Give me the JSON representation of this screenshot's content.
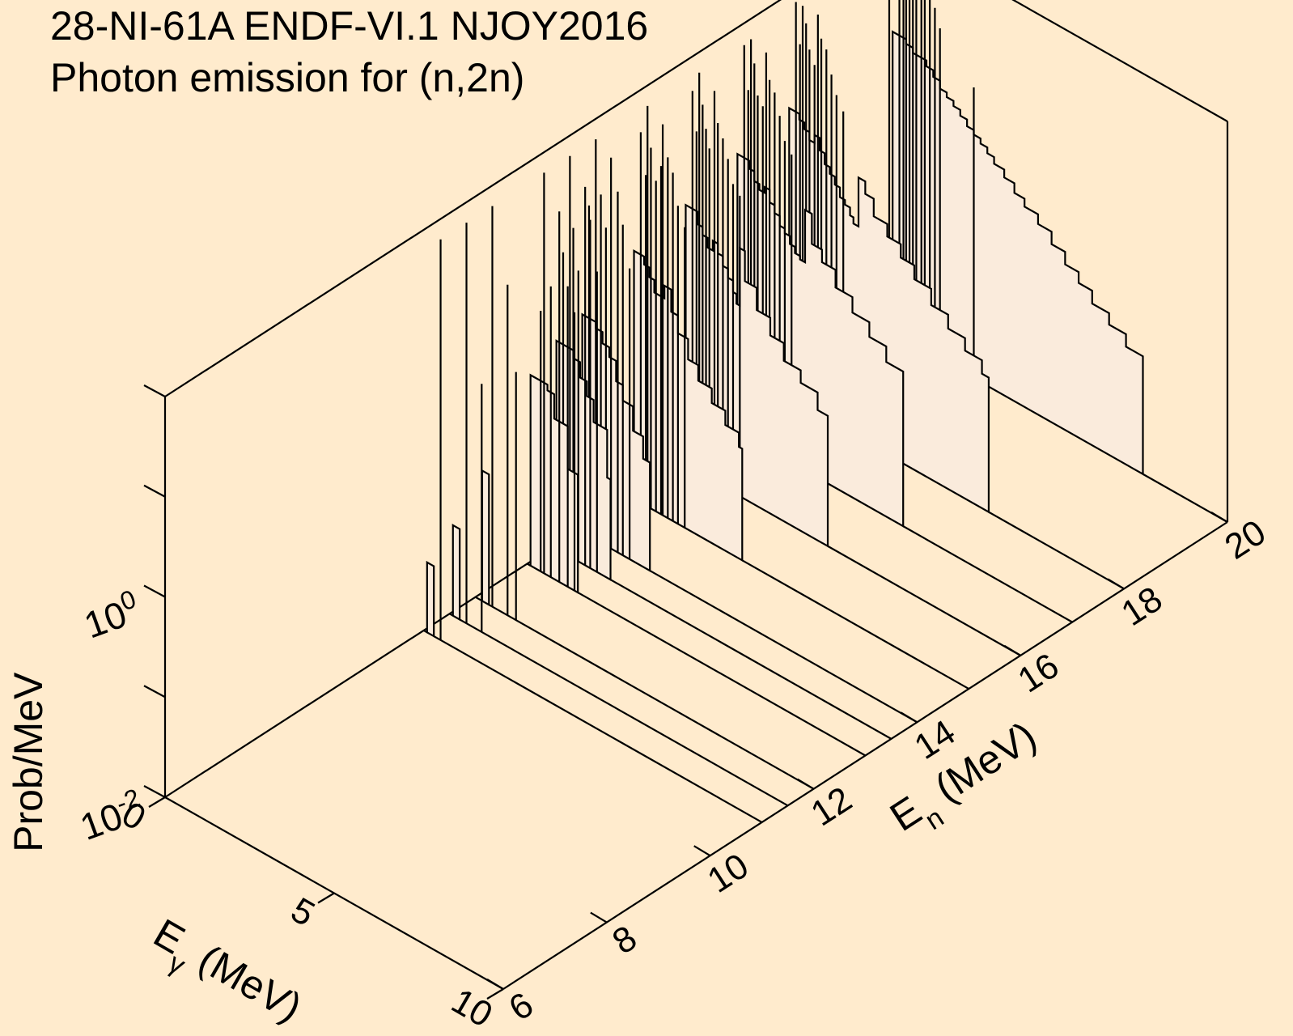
{
  "title": {
    "line1": "28-NI-61A ENDF-VI.1 NJOY2016",
    "line2": "Photon emission for (n,2n)"
  },
  "colors": {
    "background": "#FFEBCD",
    "fill": "#FAEBDC",
    "line": "#000000"
  },
  "chart_data": {
    "type": "waterfall",
    "x_axis": {
      "label": "E",
      "label_sub": "γ",
      "label_unit": " (MeV)",
      "range": [
        0,
        10
      ],
      "ticks": [
        0,
        5,
        10
      ]
    },
    "y_axis": {
      "label": "E",
      "label_sub": "n",
      "label_unit": " (MeV)",
      "range": [
        6,
        20
      ],
      "ticks": [
        6,
        8,
        10,
        12,
        14,
        16,
        18,
        20
      ]
    },
    "z_axis": {
      "label": "Prob/MeV",
      "scale": "log",
      "range": [
        0.01,
        100
      ],
      "ticks": [
        {
          "value": 0.01,
          "base": "10",
          "exp": "-2"
        },
        {
          "value": 1,
          "base": "10",
          "exp": "0"
        }
      ]
    },
    "series": [
      {
        "En": 11.0,
        "continuum": [
          [
            0.1,
            0.05
          ],
          [
            0.2,
            0.05
          ],
          [
            0.3,
            0.05
          ]
        ],
        "lines": [
          [
            0.5,
            100.0
          ]
        ]
      },
      {
        "En": 11.5,
        "continuum": [
          [
            0.1,
            0.08
          ],
          [
            0.2,
            0.08
          ],
          [
            0.3,
            0.08
          ]
        ],
        "lines": [
          [
            0.5,
            100.0
          ],
          [
            0.95,
            3.0
          ]
        ]
      },
      {
        "En": 12.0,
        "continuum": [
          [
            0.2,
            0.2
          ],
          [
            0.3,
            0.2
          ],
          [
            0.4,
            0.2
          ]
        ],
        "lines": [
          [
            0.5,
            100.0
          ],
          [
            0.95,
            20.0
          ],
          [
            1.2,
            3.0
          ]
        ]
      },
      {
        "En": 13.0,
        "continuum": [
          [
            0.1,
            0.8
          ],
          [
            0.2,
            0.8
          ],
          [
            0.4,
            0.8
          ],
          [
            0.6,
            0.7
          ],
          [
            0.8,
            0.4
          ],
          [
            1.2,
            0.15
          ],
          [
            1.5,
            0.07
          ]
        ],
        "lines": [
          [
            0.4,
            4.0
          ],
          [
            0.5,
            100.0
          ],
          [
            0.7,
            8.0
          ],
          [
            0.95,
            50.0
          ],
          [
            1.2,
            10.0
          ],
          [
            1.4,
            6.0
          ]
        ]
      },
      {
        "En": 13.5,
        "continuum": [
          [
            0.1,
            1.2
          ],
          [
            0.2,
            1.2
          ],
          [
            0.4,
            1.2
          ],
          [
            0.6,
            1.0
          ],
          [
            0.8,
            0.7
          ],
          [
            1.0,
            0.5
          ],
          [
            1.2,
            0.3
          ],
          [
            1.6,
            0.1
          ],
          [
            1.7,
            0.08
          ]
        ],
        "lines": [
          [
            0.3,
            10.0
          ],
          [
            0.5,
            100.0
          ],
          [
            0.6,
            20.0
          ],
          [
            0.75,
            8.0
          ],
          [
            0.95,
            60.0
          ],
          [
            1.1,
            30.0
          ],
          [
            1.3,
            10.0
          ]
        ]
      },
      {
        "En": 14.0,
        "continuum": [
          [
            0.1,
            1.5
          ],
          [
            0.3,
            1.5
          ],
          [
            0.5,
            1.3
          ],
          [
            0.7,
            1.0
          ],
          [
            0.9,
            0.8
          ],
          [
            1.1,
            0.5
          ],
          [
            1.3,
            0.35
          ],
          [
            1.6,
            0.2
          ],
          [
            1.9,
            0.12
          ],
          [
            2.1,
            0.1
          ]
        ],
        "lines": [
          [
            0.3,
            20.0
          ],
          [
            0.5,
            100.0
          ],
          [
            0.65,
            30.0
          ],
          [
            0.8,
            15.0
          ],
          [
            0.95,
            80.0
          ],
          [
            1.15,
            40.0
          ],
          [
            1.3,
            20.0
          ],
          [
            1.5,
            8.0
          ]
        ]
      },
      {
        "En": 15.0,
        "continuum": [
          [
            0.1,
            3.0
          ],
          [
            0.3,
            3.0
          ],
          [
            0.4,
            2.5
          ],
          [
            0.55,
            2.0
          ],
          [
            0.7,
            1.5
          ],
          [
            0.9,
            1.5
          ],
          [
            1.0,
            2.0
          ],
          [
            1.2,
            1.2
          ],
          [
            1.4,
            0.8
          ],
          [
            1.7,
            0.5
          ],
          [
            2.0,
            0.35
          ],
          [
            2.4,
            0.25
          ],
          [
            2.8,
            0.18
          ],
          [
            3.2,
            0.13
          ],
          [
            3.3,
            0.1
          ]
        ],
        "lines": [
          [
            0.3,
            50.0
          ],
          [
            0.45,
            20.0
          ],
          [
            0.5,
            100.0
          ],
          [
            0.6,
            40.0
          ],
          [
            0.75,
            20.0
          ],
          [
            0.9,
            30.0
          ],
          [
            0.95,
            80.0
          ],
          [
            1.1,
            40.0
          ],
          [
            1.25,
            30.0
          ],
          [
            1.4,
            15.0
          ],
          [
            1.6,
            10.0
          ]
        ]
      },
      {
        "En": 16.0,
        "continuum": [
          [
            0.1,
            4.0
          ],
          [
            0.3,
            4.0
          ],
          [
            0.45,
            3.0
          ],
          [
            0.6,
            2.5
          ],
          [
            0.75,
            2.0
          ],
          [
            0.9,
            2.5
          ],
          [
            1.05,
            2.0
          ],
          [
            1.2,
            1.6
          ],
          [
            1.35,
            1.3
          ],
          [
            1.5,
            1.0
          ],
          [
            1.6,
            0.8
          ],
          [
            1.7,
            3.0
          ],
          [
            1.85,
            1.5
          ],
          [
            2.2,
            0.9
          ],
          [
            2.6,
            0.6
          ],
          [
            3.0,
            0.4
          ],
          [
            3.5,
            0.3
          ],
          [
            4.0,
            0.2
          ],
          [
            4.3,
            0.15
          ]
        ],
        "lines": [
          [
            0.3,
            60.0
          ],
          [
            0.42,
            25.0
          ],
          [
            0.5,
            100.0
          ],
          [
            0.6,
            50.0
          ],
          [
            0.7,
            30.0
          ],
          [
            0.8,
            20.0
          ],
          [
            0.95,
            80.0
          ],
          [
            1.05,
            40.0
          ],
          [
            1.2,
            30.0
          ],
          [
            1.35,
            20.0
          ],
          [
            1.5,
            12.0
          ],
          [
            1.7,
            10.0
          ]
        ]
      },
      {
        "En": 17.0,
        "continuum": [
          [
            0.1,
            6.0
          ],
          [
            0.3,
            6.0
          ],
          [
            0.45,
            5.0
          ],
          [
            0.6,
            4.0
          ],
          [
            0.75,
            3.5
          ],
          [
            0.9,
            4.0
          ],
          [
            1.05,
            3.0
          ],
          [
            1.2,
            2.5
          ],
          [
            1.35,
            2.0
          ],
          [
            1.5,
            1.8
          ],
          [
            1.65,
            1.5
          ],
          [
            1.8,
            1.3
          ],
          [
            1.95,
            1.2
          ],
          [
            2.1,
            4.0
          ],
          [
            2.3,
            2.0
          ],
          [
            2.6,
            1.5
          ],
          [
            3.0,
            1.0
          ],
          [
            3.5,
            0.7
          ],
          [
            4.0,
            0.5
          ],
          [
            4.5,
            0.35
          ],
          [
            5.0,
            0.25
          ]
        ],
        "lines": [
          [
            0.3,
            80.0
          ],
          [
            0.42,
            30.0
          ],
          [
            0.5,
            100.0
          ],
          [
            0.6,
            60.0
          ],
          [
            0.7,
            30.0
          ],
          [
            0.85,
            25.0
          ],
          [
            0.95,
            90.0
          ],
          [
            1.05,
            50.0
          ],
          [
            1.2,
            40.0
          ],
          [
            1.35,
            25.0
          ],
          [
            1.5,
            15.0
          ],
          [
            1.7,
            12.0
          ]
        ]
      },
      {
        "En": 18.0,
        "continuum": [
          [
            0.1,
            8.0
          ],
          [
            0.25,
            8.0
          ],
          [
            0.4,
            7.0
          ],
          [
            0.55,
            6.0
          ],
          [
            0.7,
            5.0
          ],
          [
            0.85,
            6.0
          ],
          [
            1.0,
            4.5
          ],
          [
            1.15,
            3.5
          ],
          [
            1.3,
            3.0
          ],
          [
            1.45,
            2.5
          ],
          [
            1.6,
            2.0
          ],
          [
            1.75,
            1.8
          ],
          [
            1.9,
            1.5
          ],
          [
            2.0,
            1.3
          ],
          [
            2.15,
            4.0
          ],
          [
            2.35,
            3.0
          ],
          [
            2.6,
            2.0
          ],
          [
            3.0,
            1.5
          ],
          [
            3.4,
            1.1
          ],
          [
            3.8,
            0.8
          ],
          [
            4.3,
            0.55
          ],
          [
            4.8,
            0.4
          ],
          [
            5.3,
            0.3
          ],
          [
            5.8,
            0.22
          ],
          [
            6.0,
            0.2
          ]
        ],
        "lines": [
          [
            0.3,
            100.0
          ],
          [
            0.42,
            40.0
          ],
          [
            0.5,
            100.0
          ],
          [
            0.6,
            70.0
          ],
          [
            0.7,
            40.0
          ],
          [
            0.85,
            30.0
          ],
          [
            0.95,
            100.0
          ],
          [
            1.05,
            60.0
          ],
          [
            1.2,
            50.0
          ],
          [
            1.35,
            30.0
          ],
          [
            1.5,
            20.0
          ],
          [
            1.7,
            15.0
          ]
        ]
      },
      {
        "En": 20.0,
        "continuum": [
          [
            0.1,
            10.0
          ],
          [
            0.3,
            10.0
          ],
          [
            0.5,
            9.0
          ],
          [
            0.7,
            8.0
          ],
          [
            0.9,
            8.0
          ],
          [
            1.1,
            7.0
          ],
          [
            1.3,
            6.0
          ],
          [
            1.5,
            5.0
          ],
          [
            1.7,
            4.5
          ],
          [
            1.9,
            4.0
          ],
          [
            2.1,
            3.5
          ],
          [
            2.3,
            3.0
          ],
          [
            2.5,
            2.7
          ],
          [
            2.7,
            2.4
          ],
          [
            2.9,
            2.1
          ],
          [
            3.1,
            1.8
          ],
          [
            3.4,
            1.5
          ],
          [
            3.7,
            1.2
          ],
          [
            4.0,
            1.0
          ],
          [
            4.4,
            0.8
          ],
          [
            4.8,
            0.6
          ],
          [
            5.2,
            0.45
          ],
          [
            5.6,
            0.35
          ],
          [
            6.0,
            0.26
          ],
          [
            6.5,
            0.2
          ],
          [
            7.0,
            0.15
          ],
          [
            7.5,
            0.12
          ]
        ],
        "lines": [
          [
            0.3,
            100.0
          ],
          [
            0.42,
            40.0
          ],
          [
            0.5,
            100.0
          ],
          [
            0.6,
            80.0
          ],
          [
            0.7,
            50.0
          ],
          [
            0.8,
            40.0
          ],
          [
            0.95,
            100.0
          ],
          [
            1.05,
            60.0
          ],
          [
            1.2,
            50.0
          ],
          [
            1.35,
            30.0
          ],
          [
            1.5,
            20.0
          ],
          [
            2.5,
            8.0
          ]
        ]
      }
    ]
  }
}
